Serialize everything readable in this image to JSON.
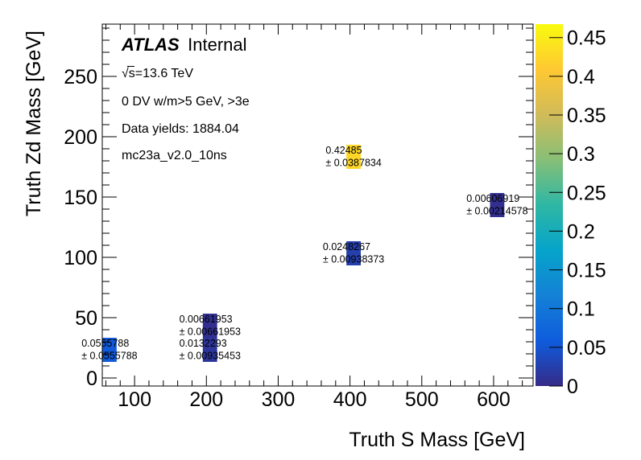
{
  "chart_data": {
    "type": "heatmap",
    "title": "",
    "xlabel": "Truth S Mass [GeV]",
    "ylabel": "Truth Zd Mass [GeV]",
    "xlim": [
      55,
      655
    ],
    "ylim": [
      -6.667,
      293.333
    ],
    "zlim": [
      0,
      0.467335
    ],
    "grid": false,
    "x_ticks": [
      100,
      200,
      300,
      400,
      500,
      600
    ],
    "x_tick_labels": [
      "100",
      "200",
      "300",
      "400",
      "500",
      "600"
    ],
    "x_minor_step": 20,
    "y_ticks": [
      0,
      50,
      100,
      150,
      200,
      250
    ],
    "y_tick_labels": [
      "0",
      "50",
      "100",
      "150",
      "200",
      "250"
    ],
    "y_minor_step": 10,
    "z_ticks": [
      0,
      0.05,
      0.1,
      0.15,
      0.2,
      0.25,
      0.3,
      0.35,
      0.4,
      0.45
    ],
    "z_tick_labels": [
      "0",
      "0.05",
      "0.1",
      "0.15",
      "0.2",
      "0.25",
      "0.3",
      "0.35",
      "0.4",
      "0.45"
    ],
    "colorbar": "right",
    "colormap": "kBird",
    "colormap_stops": [
      "#352a87",
      "#0f5cdd",
      "#1481d6",
      "#06a4ca",
      "#2eb7a4",
      "#87bf77",
      "#d1bb59",
      "#fec832",
      "#f9fb0e"
    ],
    "cells": [
      {
        "x_range": [
          55,
          75
        ],
        "y_range": [
          13.333,
          33.333
        ],
        "value": 0.0555788,
        "error": 0.0555788,
        "label": "0.0555788",
        "error_label": "± 0.0555788"
      },
      {
        "x_range": [
          195,
          215
        ],
        "y_range": [
          33.333,
          53.333
        ],
        "value": 0.00661953,
        "error": 0.00661953,
        "label": "0.00661953",
        "error_label": "± 0.00661953"
      },
      {
        "x_range": [
          195,
          215
        ],
        "y_range": [
          13.333,
          33.333
        ],
        "value": 0.0132293,
        "error": 0.00935453,
        "label": "0.0132293",
        "error_label": "± 0.00935453"
      },
      {
        "x_range": [
          395,
          415
        ],
        "y_range": [
          93.333,
          113.333
        ],
        "value": 0.0248267,
        "error": 0.00938373,
        "label": "0.0248267",
        "error_label": "± 0.00938373"
      },
      {
        "x_range": [
          395,
          415
        ],
        "y_range": [
          173.333,
          193.333
        ],
        "value": 0.42485,
        "error": 0.0387834,
        "label": "0.42485",
        "error_label": "± 0.0387834"
      },
      {
        "x_range": [
          595,
          615
        ],
        "y_range": [
          133.333,
          153.333
        ],
        "value": 0.00606919,
        "error": 0.00214578,
        "label": "0.00606919",
        "error_label": "± 0.00214578"
      }
    ],
    "annotations": {
      "experiment": "ATLAS",
      "status": "Internal",
      "energy": "√s=13.6 TeV",
      "selection": "0 DV w/m>5 GeV, >3e",
      "yields": "Data yields: 1884.04",
      "sample": "mc23a_v2.0_10ns"
    }
  }
}
